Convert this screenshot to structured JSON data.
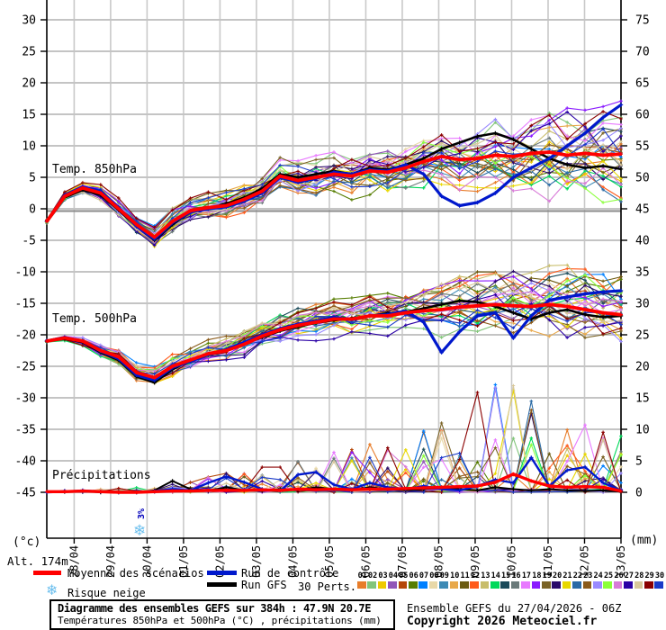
{
  "meta": {
    "alt_label": "Alt. 174m",
    "unit_left": "(°c)",
    "unit_right": "(mm)"
  },
  "axes": {
    "left_tick_labels": [
      "30",
      "25",
      "20",
      "15",
      "10",
      "5",
      "0",
      "-5",
      "-10",
      "-15",
      "-20",
      "-25",
      "-30",
      "-35",
      "-40",
      "-45"
    ],
    "right_tick_labels": [
      "75",
      "70",
      "65",
      "60",
      "55",
      "50",
      "45",
      "40",
      "35",
      "30",
      "25",
      "20",
      "15",
      "10",
      "5",
      "0"
    ],
    "x_labels": [
      "28/04",
      "29/04",
      "30/04",
      "01/05",
      "02/05",
      "03/05",
      "04/05",
      "05/05",
      "06/05",
      "07/05",
      "08/05",
      "09/05",
      "10/05",
      "11/05",
      "12/05",
      "13/05"
    ]
  },
  "annotations": {
    "snow_text": "3%",
    "snow_symbol": "snowflake-icon"
  },
  "legend": {
    "mean_label": "Moyenne des scénarios",
    "control_label": "Run de contrôle",
    "gfs_label": "Run GFS",
    "perts_label": "30 Perts.",
    "snow_label": "Risque neige",
    "mean_color": "#ff0000",
    "control_color": "#0018cc",
    "gfs_color": "#000000",
    "snow_color": "#6ec0ee",
    "pert_numbers": [
      "01",
      "02",
      "03",
      "04",
      "05",
      "06",
      "07",
      "08",
      "09",
      "10",
      "11",
      "12",
      "13",
      "14",
      "15",
      "16",
      "17",
      "18",
      "19",
      "20",
      "21",
      "22",
      "23",
      "24",
      "25",
      "26",
      "27",
      "28",
      "29",
      "30"
    ],
    "pert_colors": [
      "#e87d2a",
      "#82c57a",
      "#eec900",
      "#9155b8",
      "#b54708",
      "#567d00",
      "#0080ff",
      "#e8d8a8",
      "#3d8ab5",
      "#e8a84a",
      "#6b5a10",
      "#ff5a1a",
      "#c8bd6a",
      "#00d95a",
      "#1a4a5a",
      "#6a7a7a",
      "#e87aff",
      "#8a1aff",
      "#7a6325",
      "#2a0a6a",
      "#e8d800",
      "#2a6aa5",
      "#8a5a1a",
      "#9a8aff",
      "#8aff3a",
      "#d87ad8",
      "#2a00a5",
      "#d8c89a",
      "#8a0000",
      "#1a3ac8"
    ]
  },
  "footer": {
    "title": "Diagramme des ensembles GEFS sur 384h : 47.9N 20.7E",
    "subtitle": "Températures 850hPa et 500hPa (°C) , précipitations (mm)",
    "run_info": "Ensemble GEFS du 27/04/2026 - 06Z",
    "copyright": "Copyright 2026 Meteociel.fr"
  },
  "chart_data": [
    {
      "type": "line",
      "title": "Temp. 850hPa",
      "unit": "°C",
      "y_axis": "left",
      "ylim": [
        -45,
        30
      ],
      "x_start": "27/04 06Z",
      "x_step_hours": 12,
      "series": [
        {
          "name": "Moyenne des scénarios",
          "values": [
            -2.0,
            2.0,
            3.3,
            2.5,
            0.0,
            -2.5,
            -4.5,
            -2.0,
            -0.3,
            0.2,
            0.5,
            1.5,
            2.8,
            5.2,
            4.5,
            5.0,
            5.5,
            5.2,
            6.0,
            5.8,
            6.5,
            7.5,
            8.3,
            7.8,
            8.0,
            8.5,
            8.3,
            8.8,
            9.0,
            8.5,
            8.8,
            8.5,
            8.7
          ]
        },
        {
          "name": "Run de contrôle",
          "values": [
            -2.0,
            2.2,
            3.5,
            2.8,
            0.2,
            -2.8,
            -4.8,
            -2.2,
            -0.5,
            0.0,
            0.3,
            1.2,
            2.5,
            5.0,
            4.2,
            4.8,
            5.8,
            5.5,
            6.2,
            6.0,
            7.0,
            5.5,
            2.0,
            0.5,
            1.0,
            2.5,
            5.0,
            6.5,
            8.0,
            10.0,
            12.0,
            14.5,
            16.5
          ]
        },
        {
          "name": "Run GFS",
          "values": [
            -2.0,
            1.8,
            3.0,
            2.2,
            -0.2,
            -2.8,
            -5.0,
            -2.5,
            -0.5,
            0.0,
            0.8,
            1.8,
            3.2,
            5.5,
            5.0,
            5.5,
            6.0,
            5.5,
            6.5,
            6.2,
            7.0,
            8.0,
            9.5,
            10.5,
            11.5,
            12.0,
            11.0,
            9.5,
            8.0,
            7.0,
            6.5,
            6.8,
            6.3
          ]
        }
      ],
      "ensemble_members": 30,
      "ensemble_spread": [
        0.4,
        0.8,
        1.0,
        1.2,
        1.4,
        1.5,
        1.7,
        1.8,
        2.0,
        2.0,
        2.2,
        2.2,
        2.4,
        2.5,
        2.7,
        2.9,
        3.0,
        3.2,
        3.4,
        3.5,
        3.7,
        3.9,
        4.0,
        4.2,
        4.4,
        4.6,
        4.8,
        5.0,
        5.3,
        5.6,
        5.9,
        6.2,
        6.5
      ]
    },
    {
      "type": "line",
      "title": "Temp. 500hPa",
      "unit": "°C",
      "y_axis": "left",
      "ylim": [
        -45,
        30
      ],
      "x_start": "27/04 06Z",
      "x_step_hours": 12,
      "series": [
        {
          "name": "Moyenne des scénarios",
          "values": [
            -21.0,
            -20.5,
            -21.0,
            -22.5,
            -23.5,
            -26.0,
            -26.8,
            -25.0,
            -24.0,
            -23.0,
            -22.5,
            -21.5,
            -20.2,
            -19.2,
            -18.5,
            -18.0,
            -17.5,
            -17.5,
            -17.0,
            -17.0,
            -16.5,
            -16.2,
            -16.0,
            -15.6,
            -15.4,
            -15.2,
            -15.4,
            -15.5,
            -15.2,
            -15.5,
            -16.0,
            -16.5,
            -16.8
          ]
        },
        {
          "name": "Run de contrôle",
          "values": [
            -21.0,
            -20.4,
            -21.0,
            -22.6,
            -23.8,
            -26.4,
            -27.2,
            -25.2,
            -24.2,
            -23.2,
            -22.3,
            -21.2,
            -20.0,
            -19.0,
            -18.3,
            -17.8,
            -17.2,
            -17.6,
            -17.0,
            -16.8,
            -16.2,
            -18.0,
            -22.8,
            -19.5,
            -17.0,
            -16.5,
            -20.5,
            -17.0,
            -14.5,
            -14.0,
            -13.5,
            -13.2,
            -13.0
          ]
        },
        {
          "name": "Run GFS",
          "values": [
            -21.0,
            -20.6,
            -21.2,
            -22.8,
            -24.0,
            -26.6,
            -27.6,
            -25.5,
            -24.0,
            -23.2,
            -22.4,
            -21.4,
            -20.4,
            -19.4,
            -18.7,
            -18.1,
            -17.7,
            -17.4,
            -17.0,
            -16.6,
            -16.4,
            -15.8,
            -15.2,
            -14.6,
            -14.8,
            -15.5,
            -16.5,
            -17.5,
            -16.5,
            -16.0,
            -16.8,
            -17.2,
            -17.0
          ]
        }
      ],
      "ensemble_members": 30,
      "ensemble_spread": [
        0.3,
        0.5,
        0.8,
        1.0,
        1.2,
        1.4,
        1.5,
        1.7,
        1.8,
        2.0,
        2.0,
        2.2,
        2.2,
        2.4,
        2.5,
        2.5,
        2.7,
        2.8,
        3.0,
        3.0,
        3.2,
        3.4,
        3.5,
        3.8,
        4.0,
        4.0,
        4.2,
        4.5,
        4.5,
        4.8,
        5.0,
        5.2,
        5.5
      ]
    },
    {
      "type": "line",
      "title": "Précipitations",
      "unit": "mm",
      "y_axis": "right",
      "ylim": [
        0,
        75
      ],
      "x_start": "27/04 06Z",
      "x_step_hours": 12,
      "series": [
        {
          "name": "Moyenne des scénarios",
          "values": [
            0.1,
            0.1,
            0.2,
            0.1,
            0.0,
            0.0,
            0.1,
            0.2,
            0.2,
            0.3,
            0.3,
            0.3,
            0.4,
            0.3,
            0.5,
            0.4,
            0.5,
            0.4,
            0.5,
            0.5,
            0.6,
            0.7,
            0.8,
            0.9,
            1.0,
            1.6,
            2.9,
            1.8,
            1.0,
            0.8,
            0.9,
            0.8,
            0.2
          ]
        },
        {
          "name": "Run de contrôle",
          "values": [
            0.0,
            0.1,
            0.3,
            0.1,
            0.0,
            0.0,
            0.2,
            0.5,
            0.3,
            1.5,
            2.5,
            1.6,
            0.5,
            0.2,
            2.8,
            3.2,
            1.2,
            0.5,
            1.5,
            0.8,
            0.5,
            1.0,
            0.5,
            0.3,
            1.0,
            2.0,
            1.5,
            5.5,
            1.0,
            3.5,
            4.0,
            1.5,
            0.3
          ]
        },
        {
          "name": "Run GFS",
          "values": [
            0.0,
            0.1,
            0.2,
            0.0,
            0.0,
            0.0,
            0.3,
            1.8,
            0.5,
            0.2,
            0.8,
            0.3,
            0.2,
            0.5,
            0.3,
            0.8,
            0.5,
            0.3,
            0.8,
            0.5,
            0.3,
            0.5,
            0.8,
            0.5,
            0.3,
            0.8,
            0.5,
            0.3,
            0.5,
            0.3,
            0.2,
            0.3,
            0.1
          ]
        }
      ],
      "ensemble_members": 30,
      "ensemble_spread": [
        0.1,
        0.2,
        0.3,
        0.3,
        0.4,
        0.5,
        0.6,
        1.0,
        1.2,
        1.5,
        2.0,
        2.0,
        2.5,
        3.0,
        3.0,
        3.5,
        4.0,
        4.5,
        5.0,
        5.5,
        6.0,
        7.0,
        8.0,
        9.0,
        10.0,
        11.0,
        11.0,
        10.0,
        8.0,
        7.0,
        7.0,
        7.0,
        6.0
      ]
    }
  ]
}
